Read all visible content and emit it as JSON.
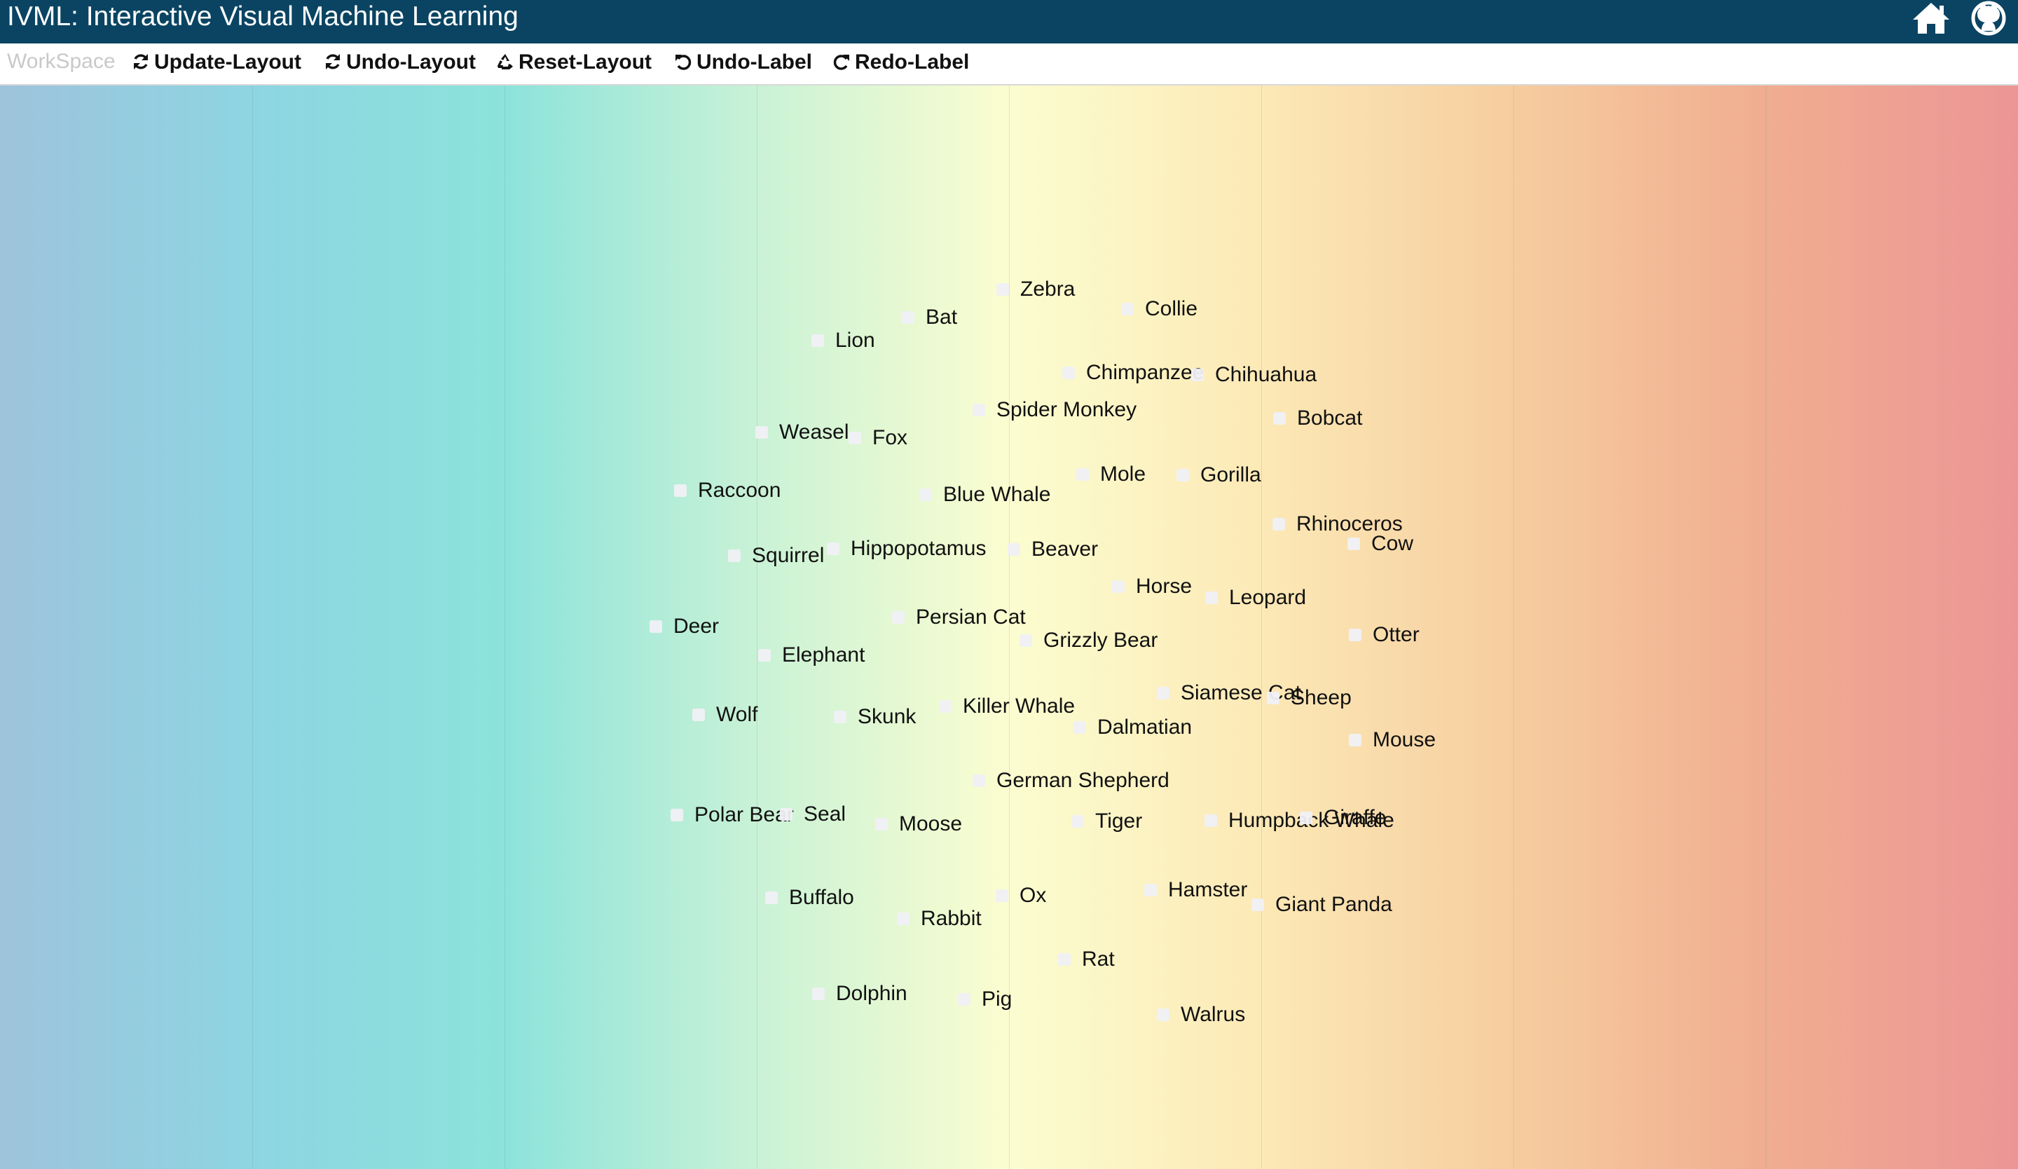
{
  "header": {
    "title": "IVML: Interactive Visual Machine Learning",
    "background": "#0a4462",
    "icons": [
      "home-icon",
      "github-icon"
    ]
  },
  "toolbar": {
    "brand": "WorkSpace",
    "buttons": [
      {
        "label": "Update-Layout",
        "icon": "refresh-icon"
      },
      {
        "label": "Undo-Layout",
        "icon": "refresh-icon"
      },
      {
        "label": "Reset-Layout",
        "icon": "recycle-icon"
      },
      {
        "label": "Undo-Label",
        "icon": "undo-icon"
      },
      {
        "label": "Redo-Label",
        "icon": "redo-icon"
      }
    ]
  },
  "workspace": {
    "gradient_colors": [
      "#9ec3dc",
      "#8dd5e2",
      "#8ce3db",
      "#c9f2d6",
      "#fbfdd0",
      "#fce9b6",
      "#f6cd9f",
      "#f0ad90",
      "#ec9595"
    ],
    "items": [
      "Zebra",
      "Collie",
      "Bat",
      "Lion",
      "Chimpanzee",
      "Chihuahua",
      "Spider Monkey",
      "Bobcat",
      "Weasel",
      "Fox",
      "Mole",
      "Gorilla",
      "Raccoon",
      "Blue Whale",
      "Rhinoceros",
      "Cow",
      "Squirrel",
      "Hippopotamus",
      "Beaver",
      "Horse",
      "Leopard",
      "Persian Cat",
      "Deer",
      "Grizzly Bear",
      "Otter",
      "Elephant",
      "Siamese Cat",
      "Sheep",
      "Wolf",
      "Skunk",
      "Killer Whale",
      "Dalmatian",
      "Mouse",
      "German Shepherd",
      "Polar Bear",
      "Seal",
      "Moose",
      "Tiger",
      "Humpback Whale",
      "Giraffe",
      "Buffalo",
      "Ox",
      "Hamster",
      "Giant Panda",
      "Rabbit",
      "Rat",
      "Dolphin",
      "Pig",
      "Walrus"
    ]
  }
}
